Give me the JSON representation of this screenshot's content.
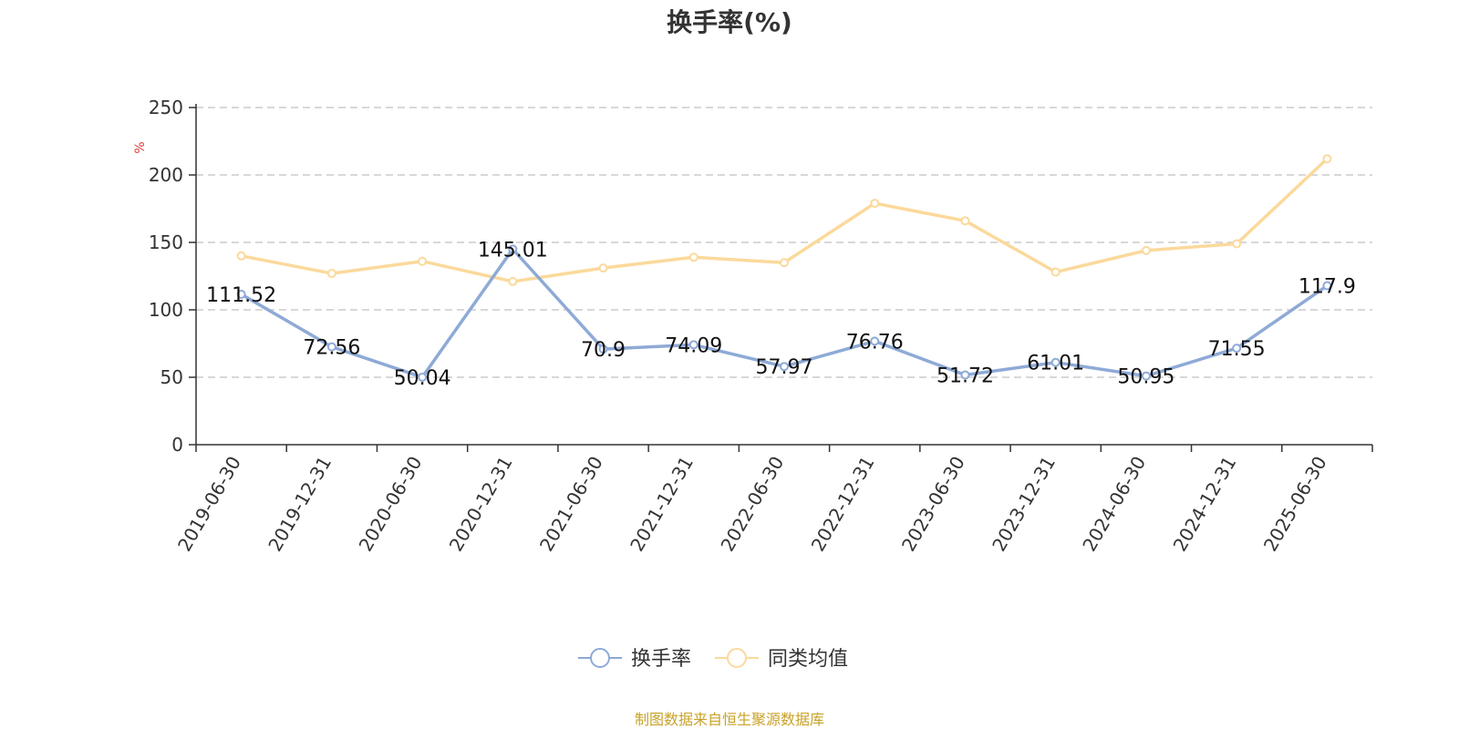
{
  "chart_data": {
    "type": "line",
    "title": "换手率(%)",
    "ylabel": "%",
    "xlabel": "",
    "ylim": [
      0,
      250
    ],
    "yticks": [
      0,
      50,
      100,
      150,
      200,
      250
    ],
    "grid": true,
    "legend_position": "bottom-center",
    "categories": [
      "2019-06-30",
      "2019-12-31",
      "2020-06-30",
      "2020-12-31",
      "2021-06-30",
      "2021-12-31",
      "2022-06-30",
      "2022-12-31",
      "2023-06-30",
      "2023-12-31",
      "2024-06-30",
      "2024-12-31",
      "2025-06-30"
    ],
    "series": [
      {
        "name": "换手率",
        "color": "#8eaad6",
        "values": [
          111.52,
          72.56,
          50.04,
          145.01,
          70.9,
          74.09,
          57.97,
          76.76,
          51.72,
          61.01,
          50.95,
          71.55,
          117.9
        ],
        "labels": [
          "111.52",
          "72.56",
          "50.04",
          "145.01",
          "70.9",
          "74.09",
          "57.97",
          "76.76",
          "51.72",
          "61.01",
          "50.95",
          "71.55",
          "117.9"
        ]
      },
      {
        "name": "同类均值",
        "color": "#fbd99b",
        "values": [
          140,
          127,
          136,
          121,
          131,
          139,
          135,
          179,
          166,
          128,
          144,
          149,
          212
        ]
      }
    ]
  },
  "colors": {
    "unit_label": "#e03a3a",
    "source": "#c9a227",
    "grid": "#cccccc",
    "axis": "#333333"
  },
  "footer": {
    "source_text": "制图数据来自恒生聚源数据库"
  }
}
